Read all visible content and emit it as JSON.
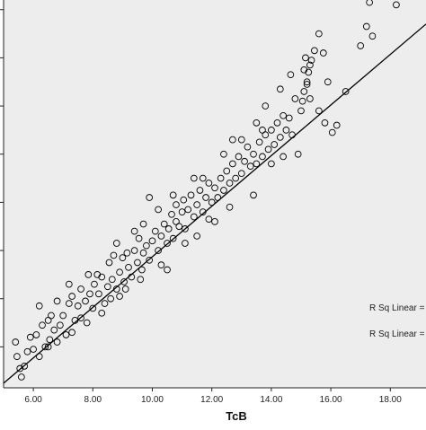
{
  "chart_data": {
    "type": "scatter",
    "xlabel": "TcB",
    "ylabel": "",
    "xlim": [
      5.0,
      19.2
    ],
    "x_ticks": [
      "6.00",
      "8.00",
      "10.00",
      "12.00",
      "14.00",
      "16.00",
      "18.00"
    ],
    "x_tick_values": [
      6,
      8,
      10,
      12,
      14,
      16,
      18
    ],
    "ylim": [
      4.3,
      20.4
    ],
    "y_tick_values": [
      6,
      8,
      10,
      12,
      14,
      16,
      18,
      20
    ],
    "grid": false,
    "background": "#ededed",
    "marker_color": "#000000",
    "fit_line": {
      "type": "linear",
      "slope": 1.05,
      "intercept": -0.76,
      "color": "#000000"
    },
    "annotations": [
      "R Sq Linear =",
      "R Sq Linear ="
    ],
    "series": [
      {
        "points": [
          [
            5.45,
            5.6
          ],
          [
            5.55,
            5.1
          ],
          [
            5.6,
            4.75
          ],
          [
            5.7,
            5.2
          ],
          [
            5.4,
            6.2
          ],
          [
            5.8,
            5.8
          ],
          [
            6.0,
            5.9
          ],
          [
            6.1,
            6.5
          ],
          [
            6.2,
            5.6
          ],
          [
            6.3,
            6.9
          ],
          [
            6.4,
            6.0
          ],
          [
            6.55,
            6.3
          ],
          [
            6.6,
            7.3
          ],
          [
            6.7,
            6.7
          ],
          [
            6.8,
            7.9
          ],
          [
            6.9,
            6.9
          ],
          [
            7.0,
            7.3
          ],
          [
            7.1,
            6.5
          ],
          [
            7.2,
            7.8
          ],
          [
            7.3,
            8.1
          ],
          [
            7.4,
            7.1
          ],
          [
            7.5,
            7.7
          ],
          [
            7.6,
            8.4
          ],
          [
            7.75,
            7.9
          ],
          [
            7.8,
            7.0
          ],
          [
            7.9,
            8.2
          ],
          [
            8.0,
            7.6
          ],
          [
            8.05,
            8.6
          ],
          [
            8.15,
            9.0
          ],
          [
            8.2,
            8.2
          ],
          [
            8.3,
            8.9
          ],
          [
            8.4,
            7.8
          ],
          [
            8.5,
            8.5
          ],
          [
            8.55,
            9.5
          ],
          [
            8.65,
            8.8
          ],
          [
            8.7,
            9.8
          ],
          [
            8.8,
            8.4
          ],
          [
            8.9,
            9.1
          ],
          [
            9.0,
            9.7
          ],
          [
            9.05,
            8.7
          ],
          [
            9.15,
            9.9
          ],
          [
            9.2,
            9.3
          ],
          [
            9.3,
            8.9
          ],
          [
            9.4,
            10.0
          ],
          [
            9.5,
            9.5
          ],
          [
            9.55,
            10.5
          ],
          [
            9.65,
            9.2
          ],
          [
            9.7,
            9.9
          ],
          [
            9.8,
            10.2
          ],
          [
            9.9,
            9.6
          ],
          [
            10.0,
            10.4
          ],
          [
            10.1,
            10.8
          ],
          [
            10.2,
            10.0
          ],
          [
            10.3,
            10.6
          ],
          [
            10.4,
            11.1
          ],
          [
            10.5,
            10.3
          ],
          [
            10.55,
            10.9
          ],
          [
            10.65,
            11.5
          ],
          [
            10.7,
            10.5
          ],
          [
            10.8,
            11.2
          ],
          [
            10.9,
            11.0
          ],
          [
            11.0,
            11.6
          ],
          [
            11.05,
            12.1
          ],
          [
            11.1,
            10.9
          ],
          [
            11.2,
            11.7
          ],
          [
            11.3,
            12.3
          ],
          [
            11.4,
            11.4
          ],
          [
            11.5,
            11.9
          ],
          [
            11.6,
            12.5
          ],
          [
            11.7,
            11.6
          ],
          [
            11.8,
            12.2
          ],
          [
            11.9,
            12.8
          ],
          [
            12.0,
            12.0
          ],
          [
            12.1,
            12.6
          ],
          [
            12.2,
            12.2
          ],
          [
            12.3,
            13.0
          ],
          [
            12.4,
            12.5
          ],
          [
            12.5,
            13.3
          ],
          [
            12.6,
            12.8
          ],
          [
            12.7,
            13.6
          ],
          [
            12.8,
            13.0
          ],
          [
            12.9,
            13.9
          ],
          [
            13.0,
            13.2
          ],
          [
            13.1,
            13.7
          ],
          [
            13.2,
            14.3
          ],
          [
            13.3,
            13.5
          ],
          [
            13.4,
            14.0
          ],
          [
            13.5,
            13.6
          ],
          [
            13.6,
            14.5
          ],
          [
            13.7,
            13.9
          ],
          [
            13.8,
            14.8
          ],
          [
            13.9,
            14.2
          ],
          [
            14.0,
            15.0
          ],
          [
            14.1,
            14.4
          ],
          [
            14.2,
            15.3
          ],
          [
            14.3,
            14.7
          ],
          [
            14.4,
            15.6
          ],
          [
            14.5,
            15.0
          ],
          [
            14.6,
            15.5
          ],
          [
            14.7,
            14.8
          ],
          [
            15.0,
            15.8
          ],
          [
            15.05,
            16.2
          ],
          [
            15.1,
            16.6
          ],
          [
            15.2,
            17.0
          ],
          [
            15.25,
            17.4
          ],
          [
            15.3,
            17.7
          ],
          [
            15.15,
            18.0
          ],
          [
            15.1,
            17.5
          ],
          [
            15.35,
            17.9
          ],
          [
            15.2,
            16.9
          ],
          [
            15.3,
            16.3
          ],
          [
            15.45,
            18.3
          ],
          [
            15.6,
            19.0
          ],
          [
            15.75,
            18.2
          ],
          [
            16.05,
            14.9
          ],
          [
            16.5,
            16.6
          ],
          [
            17.0,
            18.5
          ],
          [
            17.2,
            19.3
          ],
          [
            17.4,
            18.9
          ],
          [
            17.3,
            20.3
          ],
          [
            18.2,
            20.2
          ],
          [
            6.5,
            7.1
          ],
          [
            7.85,
            9.0
          ],
          [
            8.6,
            8.0
          ],
          [
            9.9,
            12.2
          ],
          [
            10.7,
            12.3
          ],
          [
            11.4,
            13.0
          ],
          [
            10.5,
            9.2
          ],
          [
            12.1,
            11.2
          ],
          [
            13.0,
            14.6
          ],
          [
            13.8,
            16.0
          ],
          [
            14.3,
            16.7
          ],
          [
            14.65,
            17.3
          ],
          [
            14.4,
            13.9
          ],
          [
            16.2,
            15.2
          ],
          [
            15.6,
            15.8
          ],
          [
            15.9,
            17.0
          ],
          [
            12.7,
            14.6
          ],
          [
            13.5,
            15.3
          ],
          [
            11.9,
            11.3
          ],
          [
            14.0,
            13.6
          ],
          [
            6.8,
            6.2
          ],
          [
            7.3,
            6.6
          ],
          [
            8.3,
            7.4
          ],
          [
            9.1,
            8.4
          ],
          [
            9.6,
            8.8
          ],
          [
            10.3,
            9.4
          ],
          [
            11.1,
            10.3
          ],
          [
            12.6,
            11.8
          ],
          [
            13.4,
            12.3
          ],
          [
            14.9,
            14.0
          ],
          [
            15.8,
            15.3
          ],
          [
            11.5,
            10.6
          ],
          [
            9.4,
            10.8
          ],
          [
            10.2,
            11.7
          ],
          [
            8.8,
            10.3
          ],
          [
            7.2,
            8.6
          ],
          [
            6.2,
            7.7
          ],
          [
            5.9,
            6.4
          ],
          [
            6.5,
            6.0
          ],
          [
            7.6,
            7.2
          ],
          [
            8.9,
            8.1
          ],
          [
            9.7,
            11.1
          ],
          [
            10.8,
            11.9
          ],
          [
            11.7,
            13.0
          ],
          [
            12.4,
            14.0
          ],
          [
            13.7,
            15.0
          ],
          [
            14.8,
            16.3
          ]
        ]
      }
    ]
  }
}
